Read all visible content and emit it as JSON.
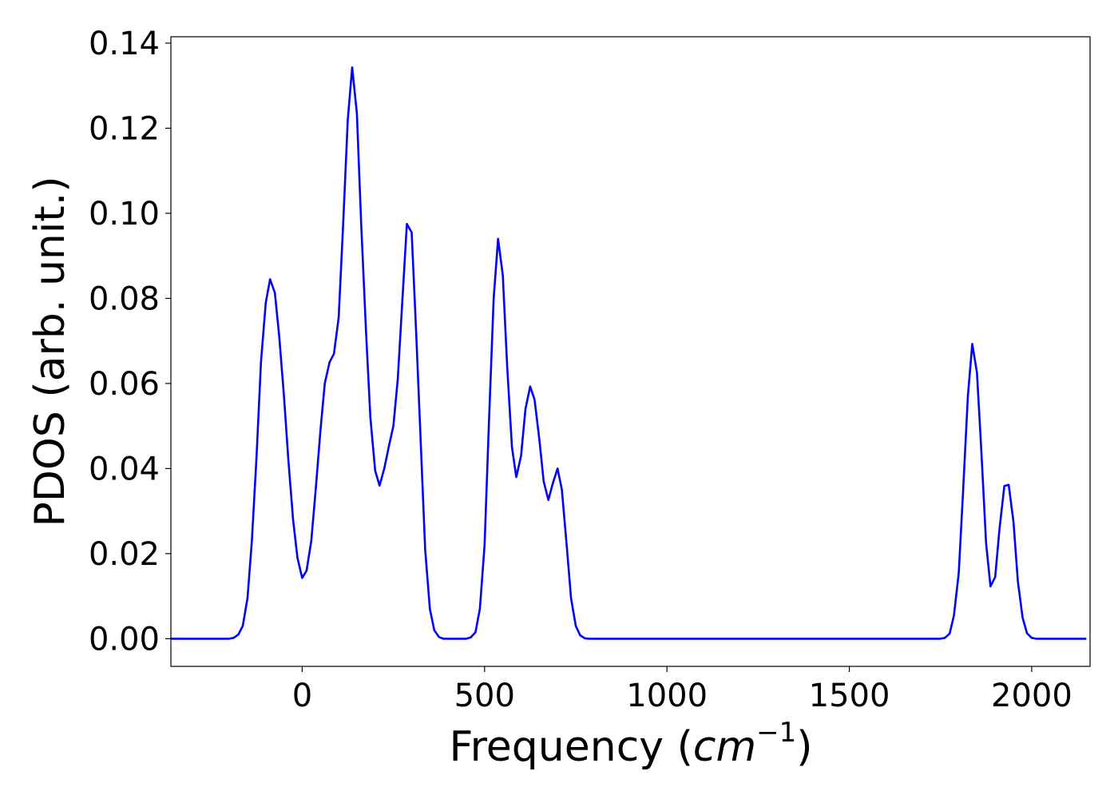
{
  "chart_data": {
    "type": "line",
    "title": "",
    "xlabel_text": "Frequency (",
    "xlabel_math": "cm",
    "xlabel_exp": "−1",
    "xlabel_close": ")",
    "ylabel": "PDOS (arb. unit.)",
    "xlim": [
      -360,
      2160
    ],
    "ylim": [
      -0.0065,
      0.1415
    ],
    "x_ticks": [
      {
        "value": 0,
        "label": "0"
      },
      {
        "value": 500,
        "label": "500"
      },
      {
        "value": 1000,
        "label": "1000"
      },
      {
        "value": 1500,
        "label": "1500"
      },
      {
        "value": 2000,
        "label": "2000"
      }
    ],
    "y_ticks": [
      {
        "value": 0.0,
        "label": "0.00"
      },
      {
        "value": 0.02,
        "label": "0.02"
      },
      {
        "value": 0.04,
        "label": "0.04"
      },
      {
        "value": 0.06,
        "label": "0.06"
      },
      {
        "value": 0.08,
        "label": "0.08"
      },
      {
        "value": 0.1,
        "label": "0.10"
      },
      {
        "value": 0.12,
        "label": "0.12"
      },
      {
        "value": 0.14,
        "label": "0.14"
      }
    ],
    "grid": false,
    "series": [
      {
        "color": "#0000ff",
        "points": [
          [
            -360,
            0.0
          ],
          [
            -200,
            0.0
          ],
          [
            -188,
            0.0002
          ],
          [
            -175,
            0.001
          ],
          [
            -163,
            0.003
          ],
          [
            -150,
            0.0095
          ],
          [
            -138,
            0.023
          ],
          [
            -125,
            0.043
          ],
          [
            -113,
            0.065
          ],
          [
            -100,
            0.079
          ],
          [
            -88,
            0.0845
          ],
          [
            -75,
            0.0813
          ],
          [
            -63,
            0.071
          ],
          [
            -50,
            0.057
          ],
          [
            -38,
            0.042
          ],
          [
            -25,
            0.028
          ],
          [
            -13,
            0.019
          ],
          [
            0,
            0.0143
          ],
          [
            12,
            0.016
          ],
          [
            25,
            0.023
          ],
          [
            37,
            0.035
          ],
          [
            50,
            0.049
          ],
          [
            62,
            0.06
          ],
          [
            75,
            0.065
          ],
          [
            87,
            0.067
          ],
          [
            100,
            0.0755
          ],
          [
            112,
            0.097
          ],
          [
            125,
            0.122
          ],
          [
            137,
            0.1343
          ],
          [
            150,
            0.1235
          ],
          [
            162,
            0.097
          ],
          [
            175,
            0.072
          ],
          [
            187,
            0.052
          ],
          [
            200,
            0.0395
          ],
          [
            212,
            0.036
          ],
          [
            225,
            0.04
          ],
          [
            237,
            0.045
          ],
          [
            250,
            0.05
          ],
          [
            262,
            0.061
          ],
          [
            275,
            0.08
          ],
          [
            287,
            0.0975
          ],
          [
            300,
            0.0955
          ],
          [
            312,
            0.073
          ],
          [
            325,
            0.046
          ],
          [
            337,
            0.021
          ],
          [
            350,
            0.007
          ],
          [
            362,
            0.002
          ],
          [
            375,
            0.0004
          ],
          [
            387,
            0.0
          ],
          [
            450,
            0.0
          ],
          [
            462,
            0.0003
          ],
          [
            475,
            0.0015
          ],
          [
            487,
            0.007
          ],
          [
            500,
            0.022
          ],
          [
            512,
            0.051
          ],
          [
            525,
            0.08
          ],
          [
            537,
            0.094
          ],
          [
            550,
            0.0855
          ],
          [
            562,
            0.064
          ],
          [
            575,
            0.045
          ],
          [
            587,
            0.038
          ],
          [
            600,
            0.043
          ],
          [
            612,
            0.054
          ],
          [
            625,
            0.0593
          ],
          [
            637,
            0.0562
          ],
          [
            650,
            0.047
          ],
          [
            662,
            0.037
          ],
          [
            675,
            0.0326
          ],
          [
            687,
            0.0365
          ],
          [
            700,
            0.04
          ],
          [
            712,
            0.035
          ],
          [
            725,
            0.022
          ],
          [
            737,
            0.0095
          ],
          [
            750,
            0.003
          ],
          [
            762,
            0.0008
          ],
          [
            775,
            0.0001
          ],
          [
            787,
            0.0
          ],
          [
            1750,
            0.0
          ],
          [
            1762,
            0.0002
          ],
          [
            1775,
            0.0012
          ],
          [
            1787,
            0.0055
          ],
          [
            1800,
            0.0155
          ],
          [
            1812,
            0.035
          ],
          [
            1825,
            0.057
          ],
          [
            1837,
            0.0693
          ],
          [
            1850,
            0.0625
          ],
          [
            1862,
            0.044
          ],
          [
            1875,
            0.0225
          ],
          [
            1887,
            0.0123
          ],
          [
            1900,
            0.0145
          ],
          [
            1912,
            0.026
          ],
          [
            1925,
            0.0359
          ],
          [
            1937,
            0.0362
          ],
          [
            1950,
            0.0275
          ],
          [
            1962,
            0.0135
          ],
          [
            1975,
            0.005
          ],
          [
            1987,
            0.0013
          ],
          [
            2000,
            0.0002
          ],
          [
            2012,
            0.0
          ],
          [
            2150,
            0.0
          ]
        ]
      }
    ]
  }
}
